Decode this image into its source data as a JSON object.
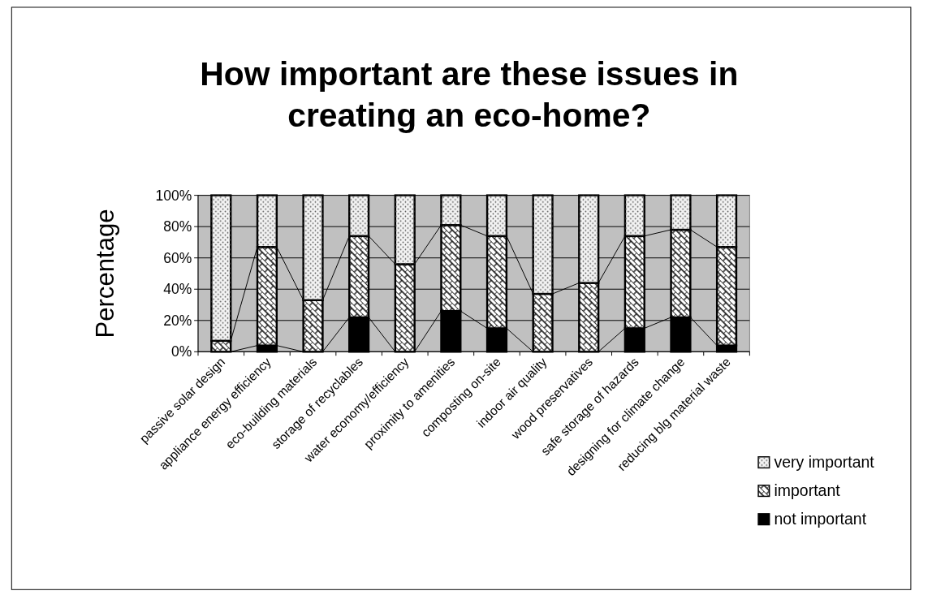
{
  "chart_data": {
    "type": "bar",
    "stacked": true,
    "title": "How important are these issues in creating an eco-home?",
    "ylabel": "Percentage",
    "categories": [
      "passive solar design",
      "appliance energy efficiency",
      "eco-building materials",
      "storage of recyclables",
      "water economy/efficiency",
      "proximity to amenities",
      "composting on-site",
      "indoor air quality",
      "wood preservatives",
      "safe storage of hazards",
      "designing for climate change",
      "reducing blg material waste"
    ],
    "series": [
      {
        "name": "not important",
        "color": "#000000",
        "values": [
          0,
          4,
          0,
          22,
          0,
          26,
          15,
          0,
          0,
          15,
          22,
          4
        ]
      },
      {
        "name": "important",
        "color": "#ffffff",
        "values": [
          7,
          63,
          33,
          52,
          56,
          55,
          59,
          37,
          44,
          59,
          56,
          63
        ]
      },
      {
        "name": "very important",
        "color": "#f4f4f4",
        "values": [
          93,
          33,
          67,
          26,
          44,
          19,
          26,
          63,
          56,
          26,
          22,
          33
        ]
      }
    ],
    "ylim": [
      0,
      100
    ],
    "yticks": [
      {
        "value": 0,
        "label": "0%"
      },
      {
        "value": 20,
        "label": "20%"
      },
      {
        "value": 40,
        "label": "40%"
      },
      {
        "value": 60,
        "label": "60%"
      },
      {
        "value": 80,
        "label": "80%"
      },
      {
        "value": 100,
        "label": "100%"
      }
    ],
    "grid": "y",
    "legend": "right"
  }
}
